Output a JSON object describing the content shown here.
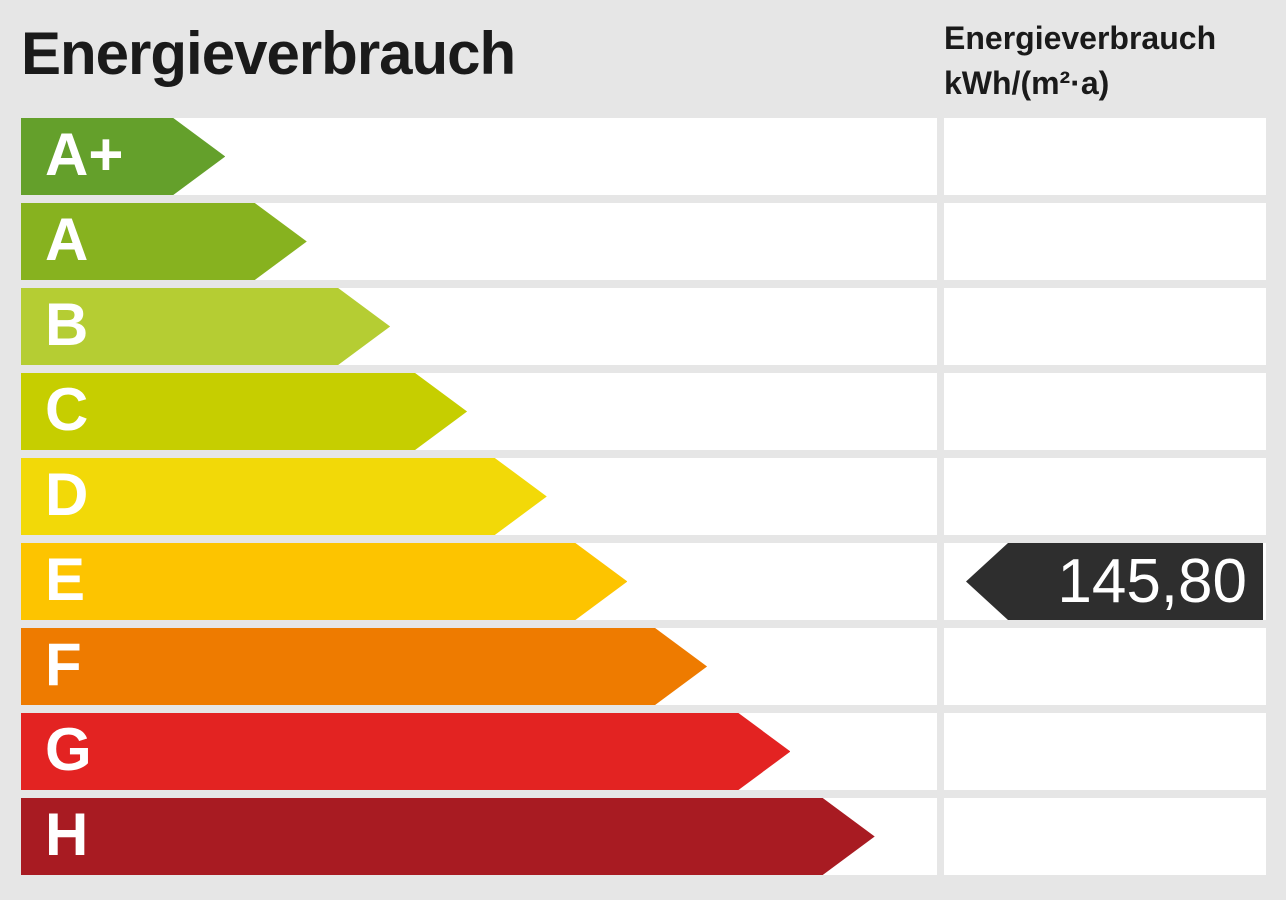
{
  "widget": {
    "title": "Energieverbrauch",
    "unit_heading": "Energieverbrauch",
    "unit_sub": "kWh/(m²·a)"
  },
  "colors": {
    "background": "#e6e6e6",
    "row_background": "#ffffff",
    "title_text": "#1a1a1a",
    "bar_label_text": "#ffffff",
    "badge": "#2e2e2e"
  },
  "scale": [
    {
      "grade": "A+",
      "color": "#64a02b",
      "width_pct": 22.3
    },
    {
      "grade": "A",
      "color": "#87b21f",
      "width_pct": 31.2
    },
    {
      "grade": "B",
      "color": "#b5cd33",
      "width_pct": 40.3
    },
    {
      "grade": "C",
      "color": "#c6ce00",
      "width_pct": 48.7
    },
    {
      "grade": "D",
      "color": "#f2d908",
      "width_pct": 57.4
    },
    {
      "grade": "E",
      "color": "#fdc400",
      "width_pct": 66.2
    },
    {
      "grade": "F",
      "color": "#ee7b00",
      "width_pct": 74.9
    },
    {
      "grade": "G",
      "color": "#e32322",
      "width_pct": 84.0
    },
    {
      "grade": "H",
      "color": "#a81b22",
      "width_pct": 93.2
    }
  ],
  "reading": {
    "value": "145,80",
    "grade": "E"
  },
  "chart_data": {
    "type": "bar",
    "title": "Energieverbrauch",
    "ylabel": "Energieverbrauch kWh/(m²·a)",
    "categories": [
      "A+",
      "A",
      "B",
      "C",
      "D",
      "E",
      "F",
      "G",
      "H"
    ],
    "values": [
      22.3,
      31.2,
      40.3,
      48.7,
      57.4,
      66.2,
      74.9,
      84.0,
      93.2
    ],
    "values_note": "decorative step widths in percent of bar track",
    "marked_grade": "E",
    "marked_value": 145.8,
    "marked_value_display": "145,80",
    "legend": false,
    "grid": false
  }
}
